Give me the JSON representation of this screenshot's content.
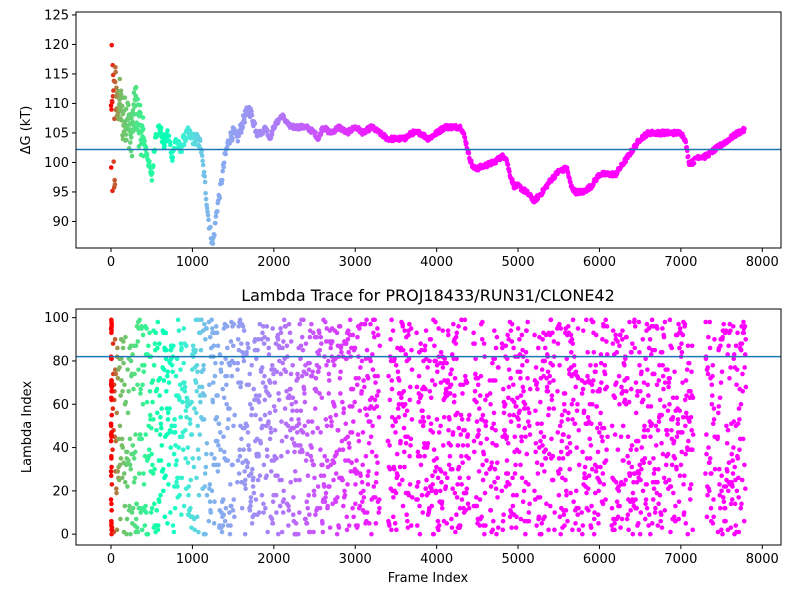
{
  "chart_data": [
    {
      "type": "scatter",
      "title": "",
      "xlabel": "",
      "ylabel": "ΔG (kT)",
      "xlim": [
        -430,
        8230
      ],
      "ylim": [
        85.5,
        125.5
      ],
      "xticks": [
        0,
        1000,
        2000,
        3000,
        4000,
        5000,
        6000,
        7000,
        8000
      ],
      "yticks": [
        90,
        95,
        100,
        105,
        110,
        115,
        120,
        125
      ],
      "hline": 102.2,
      "hline_color": "#1f77b4",
      "colormap": "rainbow (red at frame 0 → purple at late frames)",
      "grid": false,
      "series": [
        {
          "x": [
            0,
            20,
            40,
            60,
            80,
            100,
            150,
            200,
            250,
            300,
            350,
            400,
            450,
            500,
            550,
            600,
            650,
            700,
            750,
            800,
            850,
            900,
            950,
            1000,
            1050,
            1100,
            1150,
            1200,
            1250,
            1300,
            1350,
            1400,
            1450,
            1500,
            1550,
            1600,
            1650,
            1700,
            1750,
            1800,
            1850,
            1900,
            1950,
            2000,
            2050,
            2100,
            2200,
            2300,
            2400,
            2500,
            2550,
            2600,
            2700,
            2800,
            2900,
            3000,
            3100,
            3200,
            3300,
            3400,
            3500,
            3600,
            3700,
            3800,
            3900,
            4000,
            4100,
            4200,
            4300,
            4350,
            4400,
            4450,
            4500,
            4600,
            4700,
            4800,
            4850,
            4900,
            4950,
            5000,
            5100,
            5200,
            5300,
            5400,
            5500,
            5600,
            5650,
            5700,
            5800,
            5900,
            6000,
            6100,
            6200,
            6300,
            6400,
            6500,
            6600,
            6700,
            6800,
            6900,
            7000,
            7050,
            7100,
            7150,
            7200,
            7300,
            7400,
            7500,
            7600,
            7700,
            7780
          ],
          "y": [
            105,
            110,
            104,
            112,
            108,
            111,
            107,
            108,
            104,
            110,
            106,
            104,
            101,
            97,
            105,
            106,
            103,
            105,
            101,
            104,
            102,
            104,
            105,
            104,
            104,
            103,
            97,
            90,
            86,
            92,
            96,
            101,
            104,
            105,
            104,
            106,
            108,
            109,
            107,
            105,
            105,
            106,
            104,
            106,
            107,
            108,
            106,
            106,
            106,
            105,
            104,
            106,
            105,
            106,
            105,
            106,
            105,
            106,
            105,
            104,
            104,
            104,
            105,
            105,
            104,
            105,
            106,
            106,
            106,
            104,
            101,
            99,
            99,
            99.5,
            100,
            101,
            101,
            98,
            96,
            96,
            95,
            93.5,
            95,
            97,
            98.5,
            99,
            96,
            95,
            95,
            96,
            98,
            98,
            98,
            100,
            102,
            104,
            105,
            105,
            105,
            105,
            105,
            104,
            100,
            100,
            101,
            101,
            102,
            103,
            104,
            105,
            105.5
          ]
        }
      ]
    },
    {
      "type": "scatter",
      "title": "Lambda Trace for PROJ18433/RUN31/CLONE42",
      "xlabel": "Frame Index",
      "ylabel": "Lambda Index",
      "xlim": [
        -430,
        8230
      ],
      "ylim": [
        -5,
        104
      ],
      "xticks": [
        0,
        1000,
        2000,
        3000,
        4000,
        5000,
        6000,
        7000,
        8000
      ],
      "yticks": [
        0,
        20,
        40,
        60,
        80,
        100
      ],
      "hline": 82,
      "hline_color": "#1f77b4",
      "colormap": "rainbow (red at frame 0 → purple at late frames)",
      "grid": false,
      "series": [
        {
          "x_range": [
            0,
            7800
          ],
          "y_range": [
            0,
            99
          ],
          "points_per_frame": 1,
          "dense_bands": [
            [
              0,
              1180
            ],
            [
              1200,
              1520
            ],
            [
              1550,
              2400
            ],
            [
              2400,
              3300
            ],
            [
              3400,
              3700
            ],
            [
              3750,
              4100
            ],
            [
              4100,
              4400
            ],
            [
              4450,
              4620
            ],
            [
              4650,
              4760
            ],
            [
              4800,
              5150
            ],
            [
              5200,
              5450
            ],
            [
              5480,
              5750
            ],
            [
              5780,
              5900
            ],
            [
              5900,
              6100
            ],
            [
              6150,
              6450
            ],
            [
              6450,
              6650
            ],
            [
              6650,
              6850
            ],
            [
              6850,
              7150
            ],
            [
              7300,
              7420
            ],
            [
              7450,
              7800
            ]
          ]
        }
      ]
    }
  ]
}
